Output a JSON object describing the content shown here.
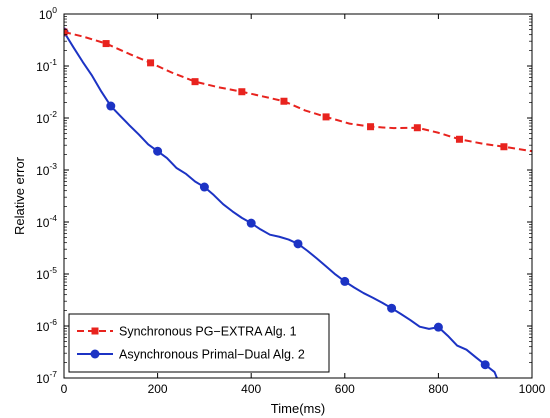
{
  "chart_data": {
    "type": "line",
    "xlabel": "Time(ms)",
    "ylabel": "Relative error",
    "xlim": [
      0,
      1000
    ],
    "ylim": [
      1e-07,
      1
    ],
    "yscale": "log",
    "grid": false,
    "legend_position": "bottom-left",
    "x_ticks": [
      0,
      200,
      400,
      600,
      800,
      1000
    ],
    "y_tick_exponents": [
      0,
      -1,
      -2,
      -3,
      -4,
      -5,
      -6,
      -7
    ],
    "y_tick_base": "10",
    "series": [
      {
        "name": "Synchronous PG−EXTRA Alg. 1",
        "color": "#e8231e",
        "line_style": "dashed",
        "marker": "square",
        "markers": [
          {
            "x": 0,
            "y": 0.45
          },
          {
            "x": 90,
            "y": 0.27
          },
          {
            "x": 185,
            "y": 0.115
          },
          {
            "x": 280,
            "y": 0.05
          },
          {
            "x": 380,
            "y": 0.032
          },
          {
            "x": 470,
            "y": 0.021
          },
          {
            "x": 560,
            "y": 0.0105
          },
          {
            "x": 655,
            "y": 0.0068
          },
          {
            "x": 755,
            "y": 0.0065
          },
          {
            "x": 845,
            "y": 0.0039
          },
          {
            "x": 940,
            "y": 0.0028
          }
        ],
        "line": [
          {
            "x": 0,
            "y": 0.45
          },
          {
            "x": 40,
            "y": 0.37
          },
          {
            "x": 90,
            "y": 0.27
          },
          {
            "x": 140,
            "y": 0.17
          },
          {
            "x": 185,
            "y": 0.115
          },
          {
            "x": 230,
            "y": 0.075
          },
          {
            "x": 280,
            "y": 0.05
          },
          {
            "x": 330,
            "y": 0.039
          },
          {
            "x": 380,
            "y": 0.032
          },
          {
            "x": 425,
            "y": 0.026
          },
          {
            "x": 470,
            "y": 0.021
          },
          {
            "x": 515,
            "y": 0.014
          },
          {
            "x": 560,
            "y": 0.0105
          },
          {
            "x": 610,
            "y": 0.0078
          },
          {
            "x": 655,
            "y": 0.0068
          },
          {
            "x": 705,
            "y": 0.0064
          },
          {
            "x": 755,
            "y": 0.0065
          },
          {
            "x": 800,
            "y": 0.0052
          },
          {
            "x": 845,
            "y": 0.0039
          },
          {
            "x": 895,
            "y": 0.0032
          },
          {
            "x": 940,
            "y": 0.0028
          },
          {
            "x": 1000,
            "y": 0.0023
          }
        ]
      },
      {
        "name": "Asynchronous Primal−Dual Alg. 2",
        "color": "#1c33c4",
        "line_style": "solid",
        "marker": "circle",
        "markers": [
          {
            "x": 0,
            "y": 0.45
          },
          {
            "x": 100,
            "y": 0.017
          },
          {
            "x": 200,
            "y": 0.0023
          },
          {
            "x": 300,
            "y": 0.00047
          },
          {
            "x": 400,
            "y": 9.5e-05
          },
          {
            "x": 500,
            "y": 3.8e-05
          },
          {
            "x": 600,
            "y": 7.2e-06
          },
          {
            "x": 700,
            "y": 2.2e-06
          },
          {
            "x": 800,
            "y": 9.5e-07
          },
          {
            "x": 900,
            "y": 1.8e-07
          }
        ],
        "line": [
          {
            "x": 0,
            "y": 0.45
          },
          {
            "x": 20,
            "y": 0.23
          },
          {
            "x": 40,
            "y": 0.12
          },
          {
            "x": 60,
            "y": 0.065
          },
          {
            "x": 80,
            "y": 0.032
          },
          {
            "x": 100,
            "y": 0.017
          },
          {
            "x": 120,
            "y": 0.011
          },
          {
            "x": 140,
            "y": 0.0072
          },
          {
            "x": 160,
            "y": 0.0048
          },
          {
            "x": 180,
            "y": 0.0031
          },
          {
            "x": 200,
            "y": 0.0023
          },
          {
            "x": 220,
            "y": 0.0017
          },
          {
            "x": 240,
            "y": 0.0011
          },
          {
            "x": 260,
            "y": 0.00085
          },
          {
            "x": 280,
            "y": 0.0006
          },
          {
            "x": 300,
            "y": 0.00047
          },
          {
            "x": 320,
            "y": 0.00033
          },
          {
            "x": 340,
            "y": 0.00022
          },
          {
            "x": 360,
            "y": 0.00016
          },
          {
            "x": 380,
            "y": 0.00012
          },
          {
            "x": 400,
            "y": 9.5e-05
          },
          {
            "x": 420,
            "y": 7.2e-05
          },
          {
            "x": 440,
            "y": 5.7e-05
          },
          {
            "x": 460,
            "y": 5.2e-05
          },
          {
            "x": 480,
            "y": 4.6e-05
          },
          {
            "x": 500,
            "y": 3.8e-05
          },
          {
            "x": 520,
            "y": 2.8e-05
          },
          {
            "x": 540,
            "y": 2e-05
          },
          {
            "x": 560,
            "y": 1.4e-05
          },
          {
            "x": 580,
            "y": 9.8e-06
          },
          {
            "x": 600,
            "y": 7.2e-06
          },
          {
            "x": 620,
            "y": 5.5e-06
          },
          {
            "x": 640,
            "y": 4.3e-06
          },
          {
            "x": 660,
            "y": 3.5e-06
          },
          {
            "x": 680,
            "y": 2.8e-06
          },
          {
            "x": 700,
            "y": 2.2e-06
          },
          {
            "x": 720,
            "y": 1.7e-06
          },
          {
            "x": 740,
            "y": 1.3e-06
          },
          {
            "x": 760,
            "y": 9.7e-07
          },
          {
            "x": 780,
            "y": 8.8e-07
          },
          {
            "x": 800,
            "y": 9.5e-07
          },
          {
            "x": 820,
            "y": 6.5e-07
          },
          {
            "x": 840,
            "y": 4.2e-07
          },
          {
            "x": 860,
            "y": 3.5e-07
          },
          {
            "x": 880,
            "y": 2.5e-07
          },
          {
            "x": 900,
            "y": 1.8e-07
          },
          {
            "x": 920,
            "y": 1.3e-07
          },
          {
            "x": 925,
            "y": 1e-07
          }
        ]
      }
    ]
  }
}
